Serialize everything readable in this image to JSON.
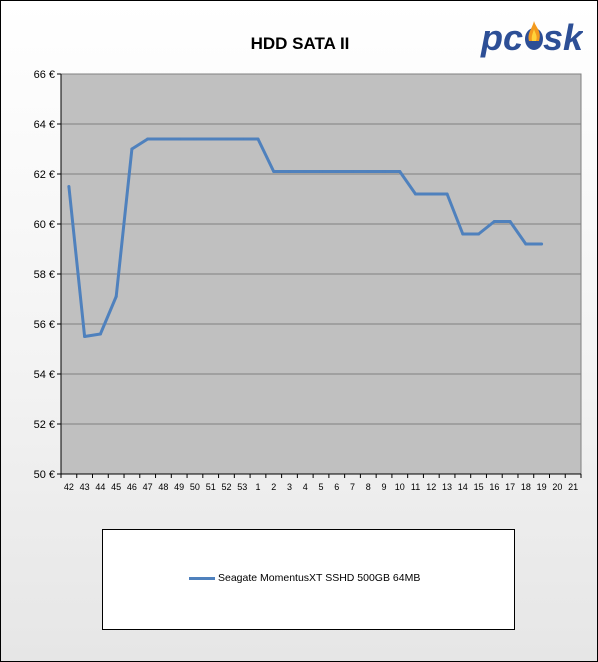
{
  "brand": {
    "logo_text": "pc",
    "logo_text_2": "sk"
  },
  "chart_data": {
    "type": "line",
    "title": "HDD SATA II",
    "xlabel": "",
    "ylabel": "",
    "categories": [
      "42",
      "43",
      "44",
      "45",
      "46",
      "47",
      "48",
      "49",
      "50",
      "51",
      "52",
      "53",
      "1",
      "2",
      "3",
      "4",
      "5",
      "6",
      "7",
      "8",
      "9",
      "10",
      "11",
      "12",
      "13",
      "14",
      "15",
      "16",
      "17",
      "18",
      "19",
      "20",
      "21"
    ],
    "ylim": [
      50,
      66
    ],
    "y_ticks": [
      "50 €",
      "52 €",
      "54 €",
      "56 €",
      "58 €",
      "60 €",
      "62 €",
      "64 €",
      "66 €"
    ],
    "grid": true,
    "legend_position": "bottom",
    "series": [
      {
        "name": "Seagate MomentusXT SSHD 500GB 64MB",
        "color": "#4f81bd",
        "values": [
          61.5,
          55.5,
          55.6,
          57.1,
          63.0,
          63.4,
          63.4,
          63.4,
          63.4,
          63.4,
          63.4,
          63.4,
          63.4,
          62.1,
          62.1,
          62.1,
          62.1,
          62.1,
          62.1,
          62.1,
          62.1,
          62.1,
          61.2,
          61.2,
          61.2,
          59.6,
          59.6,
          60.1,
          60.1,
          59.2,
          59.2,
          null,
          null
        ]
      }
    ]
  }
}
